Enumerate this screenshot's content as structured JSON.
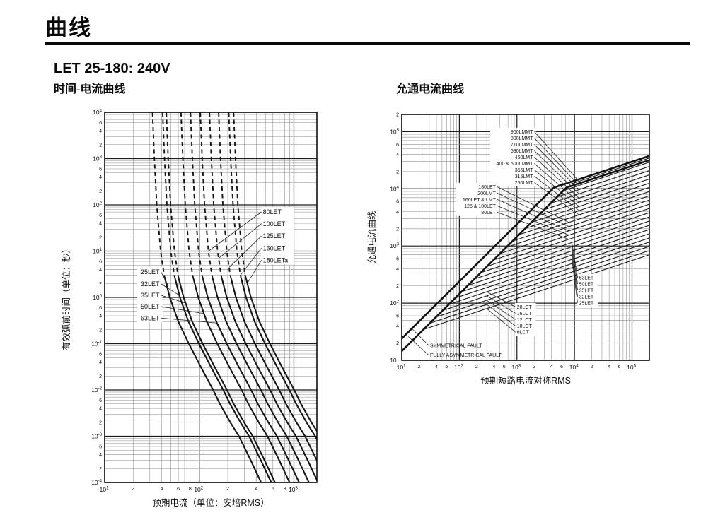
{
  "page": {
    "title": "曲线",
    "product_title": "LET 25-180: 240V"
  },
  "chart_data": [
    {
      "type": "line",
      "title": "时间-电流曲线",
      "xlabel": "预期电流（单位：安培RMS）",
      "ylabel": "有效弧前时间（单位：秒）",
      "xscale": "log",
      "yscale": "log",
      "xlim": [
        10,
        1750
      ],
      "ylim": [
        0.0001,
        10000
      ],
      "x_minor_labeled": [
        2,
        4,
        6,
        8
      ],
      "y_minor_labeled": [
        6,
        4,
        2
      ],
      "grid": true,
      "dashed_above_seconds": 2.5,
      "time_points": [
        10000,
        1000,
        100,
        10,
        3,
        1,
        0.3,
        0.1,
        0.03,
        0.01,
        0.005,
        0.002,
        0.001,
        0.0003,
        0.0001
      ],
      "current_multipliers": [
        1.28,
        1.34,
        1.42,
        1.56,
        1.7,
        1.95,
        2.4,
        3.1,
        4.2,
        5.6,
        6.6,
        8.5,
        10.5,
        14.0,
        18.0
      ],
      "series": [
        {
          "name": "25LET",
          "rating": 25
        },
        {
          "name": "32LET",
          "rating": 32
        },
        {
          "name": "35LET",
          "rating": 35
        },
        {
          "name": "50LET",
          "rating": 50
        },
        {
          "name": "63LET",
          "rating": 63
        },
        {
          "name": "80LET",
          "rating": 80
        },
        {
          "name": "100LET",
          "rating": 100
        },
        {
          "name": "125LET",
          "rating": 125
        },
        {
          "name": "160LET",
          "rating": 160
        },
        {
          "name": "180LET",
          "rating": 180
        }
      ],
      "label_groups": [
        {
          "align": "left",
          "labels": [
            {
              "text": "80LET",
              "x": 470,
              "y": 63,
              "tx": 125,
              "ty": 10
            },
            {
              "text": "100LET",
              "x": 470,
              "y": 35,
              "tx": 160,
              "ty": 7
            },
            {
              "text": "125LET",
              "x": 470,
              "y": 19,
              "tx": 208,
              "ty": 4.5
            },
            {
              "text": "160LET",
              "x": 470,
              "y": 10.4,
              "tx": 272,
              "ty": 3
            },
            {
              "text": "180LETa",
              "x": 470,
              "y": 5.7,
              "tx": 320,
              "ty": 2
            }
          ]
        },
        {
          "align": "right",
          "labels": [
            {
              "text": "25LET",
              "x": 38,
              "y": 3.2,
              "tx": 47,
              "ty": 1.8
            },
            {
              "text": "32LET",
              "x": 38,
              "y": 1.77,
              "tx": 62,
              "ty": 1.1
            },
            {
              "text": "35LET",
              "x": 38,
              "y": 1.0,
              "tx": 72,
              "ty": 0.75
            },
            {
              "text": "50LET",
              "x": 38,
              "y": 0.57,
              "tx": 110,
              "ty": 0.45
            },
            {
              "text": "63LET",
              "x": 38,
              "y": 0.32,
              "tx": 154,
              "ty": 0.28
            }
          ]
        }
      ]
    },
    {
      "type": "line",
      "title": "允通电流曲线",
      "xlabel": "预期短路电流对称RMS",
      "ylabel": "允通电流曲线",
      "xscale": "log",
      "yscale": "log",
      "xlim": [
        10,
        200000
      ],
      "ylim": [
        10,
        200000
      ],
      "x_minor_labeled": [
        2,
        4,
        6
      ],
      "y_minor_labeled": [
        6,
        4,
        2
      ],
      "grid": true,
      "fault_lines": [
        {
          "name": "FULLY ASYMMETRICAL FAULT",
          "factor": 2.4,
          "bend_y": 10500
        },
        {
          "name": "SYMMETRICAL FAULT",
          "factor": 1.45,
          "bend_y": 10500
        }
      ],
      "series": [
        {
          "name": "900LMMT",
          "coef": 592
        },
        {
          "name": "800LMMT",
          "coef": 500
        },
        {
          "name": "710LMMT",
          "coef": 422
        },
        {
          "name": "630LMMT",
          "coef": 356
        },
        {
          "name": "450LMT",
          "coef": 300
        },
        {
          "name": "400 & 500LMMT",
          "coef": 254
        },
        {
          "name": "355LMT",
          "coef": 214
        },
        {
          "name": "315LMT",
          "coef": 181
        },
        {
          "name": "250LMT",
          "coef": 153
        },
        {
          "name": "180LET",
          "coef": 129
        },
        {
          "name": "200LMT",
          "coef": 109
        },
        {
          "name": "160LET & LMT",
          "coef": 92
        },
        {
          "name": "125 & 100LET",
          "coef": 77.5
        },
        {
          "name": "80LET",
          "coef": 65.5
        },
        {
          "name": "63LET",
          "coef": 55.2
        },
        {
          "name": "50LET",
          "coef": 46.6
        },
        {
          "name": "35LET",
          "coef": 39.3
        },
        {
          "name": "32LET",
          "coef": 33.2
        },
        {
          "name": "25LET",
          "coef": 28
        },
        {
          "name": "20LCT",
          "coef": 23.6
        },
        {
          "name": "16LCT",
          "coef": 20
        },
        {
          "name": "12LCT",
          "coef": 16.8
        },
        {
          "name": "10LCT",
          "coef": 14.2
        },
        {
          "name": "6LCT",
          "coef": 12
        }
      ],
      "label_groups": [
        {
          "align": "right",
          "labels": [
            {
              "text": "900LMMT",
              "x": 1900,
              "y": 93000,
              "tx": 12000,
              "ty": 13551
            },
            {
              "text": "800LMMT",
              "x": 1900,
              "y": 72000,
              "tx": 12000,
              "ty": 11445
            },
            {
              "text": "710LMMT",
              "x": 1900,
              "y": 55700,
              "tx": 12000,
              "ty": 9660
            },
            {
              "text": "630LMMT",
              "x": 1900,
              "y": 43000,
              "tx": 12000,
              "ty": 8149
            },
            {
              "text": "450LMT",
              "x": 1900,
              "y": 33400,
              "tx": 12000,
              "ty": 6867
            },
            {
              "text": "400 & 500LMMT",
              "x": 1900,
              "y": 25800,
              "tx": 12000,
              "ty": 5814
            },
            {
              "text": "355LMT",
              "x": 1900,
              "y": 20000,
              "tx": 12000,
              "ty": 4898
            },
            {
              "text": "315LMT",
              "x": 1900,
              "y": 15500,
              "tx": 12000,
              "ty": 4143
            },
            {
              "text": "250LMT",
              "x": 1900,
              "y": 12000,
              "tx": 12000,
              "ty": 3502
            }
          ]
        },
        {
          "align": "right",
          "labels": [
            {
              "text": "180LET",
              "x": 430,
              "y": 10100,
              "tx": 8000,
              "ty": 2580
            },
            {
              "text": "200LMT",
              "x": 430,
              "y": 7840,
              "tx": 8000,
              "ty": 2180
            },
            {
              "text": "160LET & LMT",
              "x": 430,
              "y": 6060,
              "tx": 8000,
              "ty": 1840
            },
            {
              "text": "125 & 100LET",
              "x": 430,
              "y": 4690,
              "tx": 8000,
              "ty": 1550
            },
            {
              "text": "80LET",
              "x": 430,
              "y": 3640,
              "tx": 8000,
              "ty": 1310
            }
          ]
        },
        {
          "align": "left",
          "labels": [
            {
              "text": "63LET",
              "x": 12000,
              "y": 260,
              "tx": 9000,
              "ty": 1148
            },
            {
              "text": "50LET",
              "x": 12000,
              "y": 201,
              "tx": 9000,
              "ty": 969
            },
            {
              "text": "35LET",
              "x": 12000,
              "y": 156,
              "tx": 9000,
              "ty": 817
            },
            {
              "text": "32LET",
              "x": 12000,
              "y": 121,
              "tx": 9000,
              "ty": 690
            },
            {
              "text": "25LET",
              "x": 12000,
              "y": 94,
              "tx": 9000,
              "ty": 582
            }
          ]
        },
        {
          "align": "left",
          "labels": [
            {
              "text": "20LCT",
              "x": 1000,
              "y": 80,
              "tx": 300,
              "ty": 158
            },
            {
              "text": "16LCT",
              "x": 1000,
              "y": 62,
              "tx": 300,
              "ty": 134
            },
            {
              "text": "12LCT",
              "x": 1000,
              "y": 48,
              "tx": 300,
              "ty": 112
            },
            {
              "text": "10LCT",
              "x": 1000,
              "y": 37,
              "tx": 300,
              "ty": 95
            },
            {
              "text": "6LCT",
              "x": 1000,
              "y": 29,
              "tx": 300,
              "ty": 80
            }
          ]
        },
        {
          "align": "left",
          "nobox": true,
          "labels": [
            {
              "text": "SYMMETRICAL FAULT",
              "x": 31,
              "y": 17,
              "tx": 15,
              "ty": 36
            },
            {
              "text": "FULLY ASYMMETRICAL FAULT",
              "x": 31,
              "y": 11.5,
              "tx": 13,
              "ty": 26
            }
          ]
        }
      ]
    }
  ]
}
